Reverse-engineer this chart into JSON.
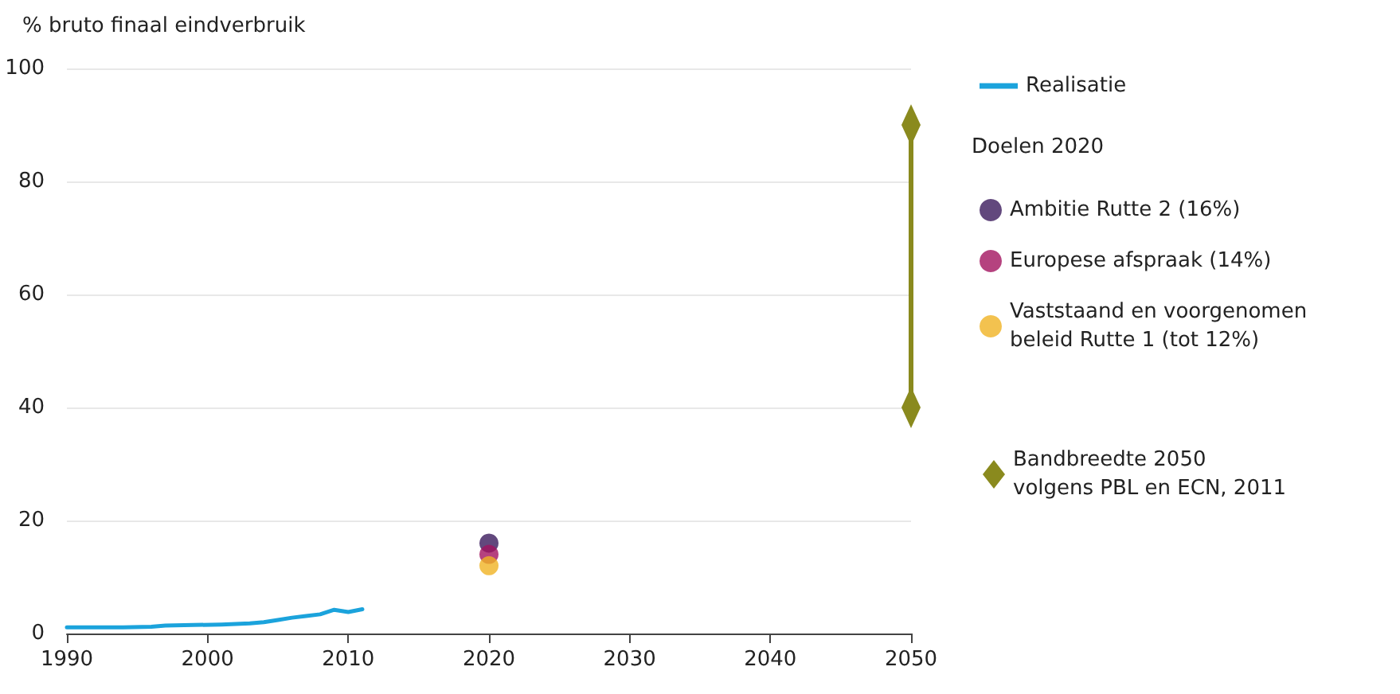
{
  "chart_data": {
    "type": "line",
    "ylabel": "% bruto finaal eindverbruik",
    "legend_title": "Doelen 2020",
    "xlim": [
      1990,
      2050
    ],
    "xticks": [
      1990,
      2000,
      2010,
      2020,
      2030,
      2040,
      2050
    ],
    "ylim": [
      0,
      100
    ],
    "yticks": [
      0,
      20,
      40,
      60,
      80,
      100
    ],
    "grid": "y",
    "legend": "right",
    "series": [
      {
        "name": "Realisatie",
        "color": "#1ba3dc",
        "x": [
          1990,
          1992,
          1994,
          1996,
          1997,
          1999,
          2001,
          2003,
          2004,
          2005,
          2006,
          2007,
          2008,
          2009,
          2010,
          2011
        ],
        "values": [
          1.1,
          1.1,
          1.1,
          1.2,
          1.4,
          1.5,
          1.6,
          1.8,
          2.0,
          2.4,
          2.8,
          3.1,
          3.4,
          4.2,
          3.8,
          4.3
        ]
      },
      {
        "name": "Ambitie Rutte 2 (16%)",
        "type": "scatter",
        "marker": "circle",
        "color": "#3b1a5c",
        "x": [
          2020
        ],
        "values": [
          16
        ]
      },
      {
        "name": "Europese afspraak (14%)",
        "type": "scatter",
        "marker": "circle",
        "color": "#a3135f",
        "x": [
          2020
        ],
        "values": [
          14
        ]
      },
      {
        "name": "Vaststaand en voorgenomen beleid Rutte 1 (tot 12%)",
        "type": "scatter",
        "marker": "circle",
        "color": "#f0b323",
        "x": [
          2020
        ],
        "values": [
          12
        ]
      },
      {
        "name": "Bandbreedte 2050 volgens PBL en ECN, 2011",
        "marker": "diamond",
        "color": "#8a8a1e",
        "x": [
          2050,
          2050
        ],
        "values": [
          40,
          90
        ]
      }
    ]
  }
}
